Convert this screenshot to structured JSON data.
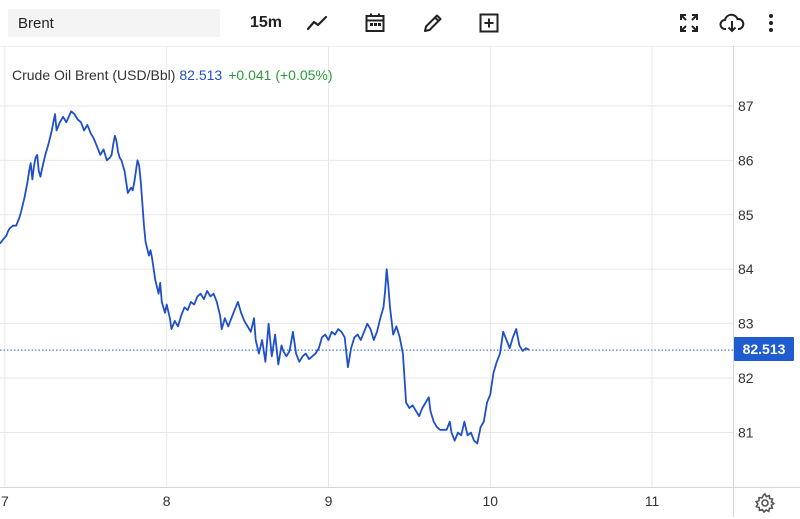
{
  "toolbar": {
    "symbol_value": "Brent",
    "interval_label": "15m",
    "icons": [
      "line-chart-icon",
      "calendar-icon",
      "pencil-icon",
      "plus-square-icon",
      "fullscreen-icon",
      "cloud-download-icon",
      "more-vertical-icon"
    ]
  },
  "legend": {
    "name": "Crude Oil Brent (USD/Bbl)",
    "price": "82.513",
    "change": "+0.041 (+0.05%)"
  },
  "last_price_label": "82.513",
  "colors": {
    "line": "#1f4fc9",
    "last_price_bg": "#1f5ccf",
    "change_positive": "#2e9a3c",
    "grid": "#e8e8e8"
  },
  "chart_data": {
    "type": "line",
    "title": "Crude Oil Brent (USD/Bbl)",
    "xlabel": "",
    "ylabel": "",
    "x_ticks": [
      "7",
      "8",
      "9",
      "10",
      "11"
    ],
    "x_tick_values": [
      7,
      8,
      9,
      10,
      11
    ],
    "xlim": [
      6.97,
      11.5
    ],
    "y_ticks": [
      "87",
      "86",
      "85",
      "84",
      "83",
      "82",
      "81"
    ],
    "y_tick_values": [
      87,
      86,
      85,
      84,
      83,
      82,
      81
    ],
    "ylim": [
      80.0,
      88.1
    ],
    "last_value": 82.513,
    "grid": true,
    "series": [
      {
        "values": [
          [
            6.97,
            84.47
          ],
          [
            6.99,
            84.55
          ],
          [
            7.01,
            84.62
          ],
          [
            7.02,
            84.7
          ],
          [
            7.03,
            84.75
          ],
          [
            7.05,
            84.8
          ],
          [
            7.07,
            84.8
          ],
          [
            7.09,
            84.95
          ],
          [
            7.1,
            85.05
          ],
          [
            7.12,
            85.3
          ],
          [
            7.14,
            85.6
          ],
          [
            7.15,
            85.8
          ],
          [
            7.16,
            85.95
          ],
          [
            7.17,
            85.65
          ],
          [
            7.18,
            85.9
          ],
          [
            7.19,
            86.05
          ],
          [
            7.2,
            86.1
          ],
          [
            7.21,
            85.8
          ],
          [
            7.22,
            85.7
          ],
          [
            7.23,
            85.85
          ],
          [
            7.25,
            86.1
          ],
          [
            7.27,
            86.3
          ],
          [
            7.29,
            86.55
          ],
          [
            7.3,
            86.7
          ],
          [
            7.31,
            86.85
          ],
          [
            7.32,
            86.55
          ],
          [
            7.34,
            86.7
          ],
          [
            7.36,
            86.8
          ],
          [
            7.38,
            86.7
          ],
          [
            7.41,
            86.9
          ],
          [
            7.43,
            86.85
          ],
          [
            7.45,
            86.75
          ],
          [
            7.47,
            86.7
          ],
          [
            7.49,
            86.55
          ],
          [
            7.51,
            86.65
          ],
          [
            7.53,
            86.5
          ],
          [
            7.55,
            86.4
          ],
          [
            7.57,
            86.25
          ],
          [
            7.59,
            86.1
          ],
          [
            7.61,
            86.2
          ],
          [
            7.63,
            86.0
          ],
          [
            7.65,
            86.05
          ],
          [
            7.66,
            86.1
          ],
          [
            7.67,
            86.3
          ],
          [
            7.68,
            86.45
          ],
          [
            7.69,
            86.35
          ],
          [
            7.7,
            86.15
          ],
          [
            7.71,
            86.05
          ],
          [
            7.72,
            86.0
          ],
          [
            7.74,
            85.8
          ],
          [
            7.76,
            85.4
          ],
          [
            7.78,
            85.5
          ],
          [
            7.79,
            85.45
          ],
          [
            7.8,
            85.6
          ],
          [
            7.81,
            85.8
          ],
          [
            7.82,
            86.0
          ],
          [
            7.83,
            85.9
          ],
          [
            7.84,
            85.6
          ],
          [
            7.85,
            85.2
          ],
          [
            7.86,
            84.8
          ],
          [
            7.87,
            84.5
          ],
          [
            7.89,
            84.25
          ],
          [
            7.9,
            84.35
          ],
          [
            7.91,
            84.2
          ],
          [
            7.92,
            84.0
          ],
          [
            7.93,
            83.8
          ],
          [
            7.95,
            83.55
          ],
          [
            7.96,
            83.75
          ],
          [
            7.97,
            83.4
          ],
          [
            7.99,
            83.2
          ],
          [
            8.0,
            83.35
          ],
          [
            8.02,
            83.1
          ],
          [
            8.03,
            82.9
          ],
          [
            8.05,
            83.05
          ],
          [
            8.07,
            82.95
          ],
          [
            8.09,
            83.15
          ],
          [
            8.11,
            83.3
          ],
          [
            8.13,
            83.25
          ],
          [
            8.15,
            83.4
          ],
          [
            8.17,
            83.35
          ],
          [
            8.19,
            83.5
          ],
          [
            8.21,
            83.55
          ],
          [
            8.23,
            83.45
          ],
          [
            8.25,
            83.6
          ],
          [
            8.27,
            83.5
          ],
          [
            8.29,
            83.55
          ],
          [
            8.31,
            83.4
          ],
          [
            8.33,
            83.15
          ],
          [
            8.34,
            82.9
          ],
          [
            8.36,
            83.1
          ],
          [
            8.38,
            82.95
          ],
          [
            8.4,
            83.1
          ],
          [
            8.42,
            83.25
          ],
          [
            8.44,
            83.4
          ],
          [
            8.46,
            83.2
          ],
          [
            8.48,
            83.05
          ],
          [
            8.5,
            82.95
          ],
          [
            8.52,
            82.85
          ],
          [
            8.54,
            83.1
          ],
          [
            8.55,
            82.7
          ],
          [
            8.57,
            82.45
          ],
          [
            8.59,
            82.7
          ],
          [
            8.61,
            82.3
          ],
          [
            8.63,
            83.0
          ],
          [
            8.65,
            82.4
          ],
          [
            8.67,
            82.8
          ],
          [
            8.69,
            82.25
          ],
          [
            8.71,
            82.6
          ],
          [
            8.72,
            82.5
          ],
          [
            8.74,
            82.4
          ],
          [
            8.76,
            82.5
          ],
          [
            8.78,
            82.85
          ],
          [
            8.8,
            82.45
          ],
          [
            8.82,
            82.3
          ],
          [
            8.84,
            82.4
          ],
          [
            8.86,
            82.45
          ],
          [
            8.88,
            82.35
          ],
          [
            8.9,
            82.4
          ],
          [
            8.92,
            82.45
          ],
          [
            8.94,
            82.55
          ],
          [
            8.96,
            82.75
          ],
          [
            8.98,
            82.8
          ],
          [
            9.0,
            82.7
          ],
          [
            9.02,
            82.85
          ],
          [
            9.04,
            82.8
          ],
          [
            9.06,
            82.9
          ],
          [
            9.08,
            82.85
          ],
          [
            9.1,
            82.75
          ],
          [
            9.12,
            82.2
          ],
          [
            9.14,
            82.55
          ],
          [
            9.16,
            82.75
          ],
          [
            9.18,
            82.8
          ],
          [
            9.2,
            82.7
          ],
          [
            9.22,
            82.85
          ],
          [
            9.24,
            83.0
          ],
          [
            9.26,
            82.9
          ],
          [
            9.28,
            82.7
          ],
          [
            9.3,
            82.85
          ],
          [
            9.32,
            83.1
          ],
          [
            9.34,
            83.3
          ],
          [
            9.35,
            83.6
          ],
          [
            9.36,
            84.0
          ],
          [
            9.37,
            83.7
          ],
          [
            9.38,
            83.3
          ],
          [
            9.4,
            82.8
          ],
          [
            9.42,
            82.95
          ],
          [
            9.44,
            82.75
          ],
          [
            9.46,
            82.45
          ],
          [
            9.48,
            81.55
          ],
          [
            9.5,
            81.45
          ],
          [
            9.52,
            81.5
          ],
          [
            9.54,
            81.4
          ],
          [
            9.56,
            81.3
          ],
          [
            9.58,
            81.45
          ],
          [
            9.6,
            81.55
          ],
          [
            9.62,
            81.65
          ],
          [
            9.63,
            81.4
          ],
          [
            9.65,
            81.2
          ],
          [
            9.67,
            81.1
          ],
          [
            9.69,
            81.05
          ],
          [
            9.71,
            81.05
          ],
          [
            9.73,
            81.05
          ],
          [
            9.75,
            81.2
          ],
          [
            9.76,
            81.0
          ],
          [
            9.78,
            80.85
          ],
          [
            9.8,
            81.0
          ],
          [
            9.82,
            80.95
          ],
          [
            9.84,
            81.2
          ],
          [
            9.86,
            80.95
          ],
          [
            9.88,
            81.0
          ],
          [
            9.9,
            80.85
          ],
          [
            9.92,
            80.8
          ],
          [
            9.94,
            81.1
          ],
          [
            9.96,
            81.2
          ],
          [
            9.98,
            81.55
          ],
          [
            10.0,
            81.7
          ],
          [
            10.02,
            82.1
          ],
          [
            10.04,
            82.3
          ],
          [
            10.06,
            82.45
          ],
          [
            10.08,
            82.85
          ],
          [
            10.1,
            82.7
          ],
          [
            10.12,
            82.55
          ],
          [
            10.14,
            82.75
          ],
          [
            10.16,
            82.9
          ],
          [
            10.18,
            82.6
          ],
          [
            10.2,
            82.5
          ],
          [
            10.22,
            82.55
          ],
          [
            10.24,
            82.52
          ]
        ]
      }
    ]
  }
}
